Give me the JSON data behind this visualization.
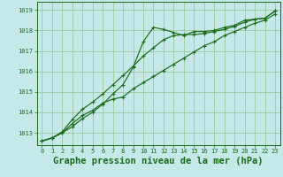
{
  "background_color": "#c6e8e8",
  "grid_color": "#9dc89d",
  "line_color": "#1a6b1a",
  "title": "Graphe pression niveau de la mer (hPa)",
  "xlim": [
    -0.5,
    23.5
  ],
  "ylim": [
    1012.4,
    1019.4
  ],
  "yticks": [
    1013,
    1014,
    1015,
    1016,
    1017,
    1018,
    1019
  ],
  "xticks": [
    0,
    1,
    2,
    3,
    4,
    5,
    6,
    7,
    8,
    9,
    10,
    11,
    12,
    13,
    14,
    15,
    16,
    17,
    18,
    19,
    20,
    21,
    22,
    23
  ],
  "series1_x": [
    0,
    1,
    2,
    3,
    4,
    5,
    6,
    7,
    8,
    9,
    10,
    11,
    12,
    13,
    14,
    15,
    16,
    17,
    18,
    19,
    20,
    21,
    22,
    23
  ],
  "series1_y": [
    1012.6,
    1012.75,
    1013.0,
    1013.3,
    1013.7,
    1014.0,
    1014.4,
    1014.9,
    1015.35,
    1016.2,
    1017.45,
    1018.15,
    1018.05,
    1017.9,
    1017.75,
    1017.95,
    1017.95,
    1018.0,
    1018.15,
    1018.25,
    1018.5,
    1018.55,
    1018.6,
    1018.95
  ],
  "series2_x": [
    0,
    1,
    2,
    3,
    4,
    5,
    6,
    7,
    8,
    9,
    10,
    11,
    12,
    13,
    14,
    15,
    16,
    17,
    18,
    19,
    20,
    21,
    22,
    23
  ],
  "series2_y": [
    1012.6,
    1012.75,
    1013.0,
    1013.45,
    1013.85,
    1014.1,
    1014.45,
    1014.65,
    1014.75,
    1015.15,
    1015.45,
    1015.75,
    1016.05,
    1016.35,
    1016.65,
    1016.95,
    1017.25,
    1017.45,
    1017.75,
    1017.95,
    1018.15,
    1018.35,
    1018.5,
    1018.8
  ],
  "series3_x": [
    0,
    1,
    2,
    3,
    4,
    5,
    6,
    7,
    8,
    9,
    10,
    11,
    12,
    13,
    14,
    15,
    16,
    17,
    18,
    19,
    20,
    21,
    22,
    23
  ],
  "series3_y": [
    1012.6,
    1012.75,
    1013.05,
    1013.65,
    1014.15,
    1014.5,
    1014.9,
    1015.35,
    1015.8,
    1016.25,
    1016.75,
    1017.15,
    1017.55,
    1017.75,
    1017.8,
    1017.8,
    1017.85,
    1017.95,
    1018.05,
    1018.2,
    1018.4,
    1018.55,
    1018.6,
    1018.95
  ],
  "marker": "+",
  "markersize": 3.5,
  "linewidth": 0.85,
  "title_fontsize": 7.5,
  "tick_fontsize": 5.0
}
